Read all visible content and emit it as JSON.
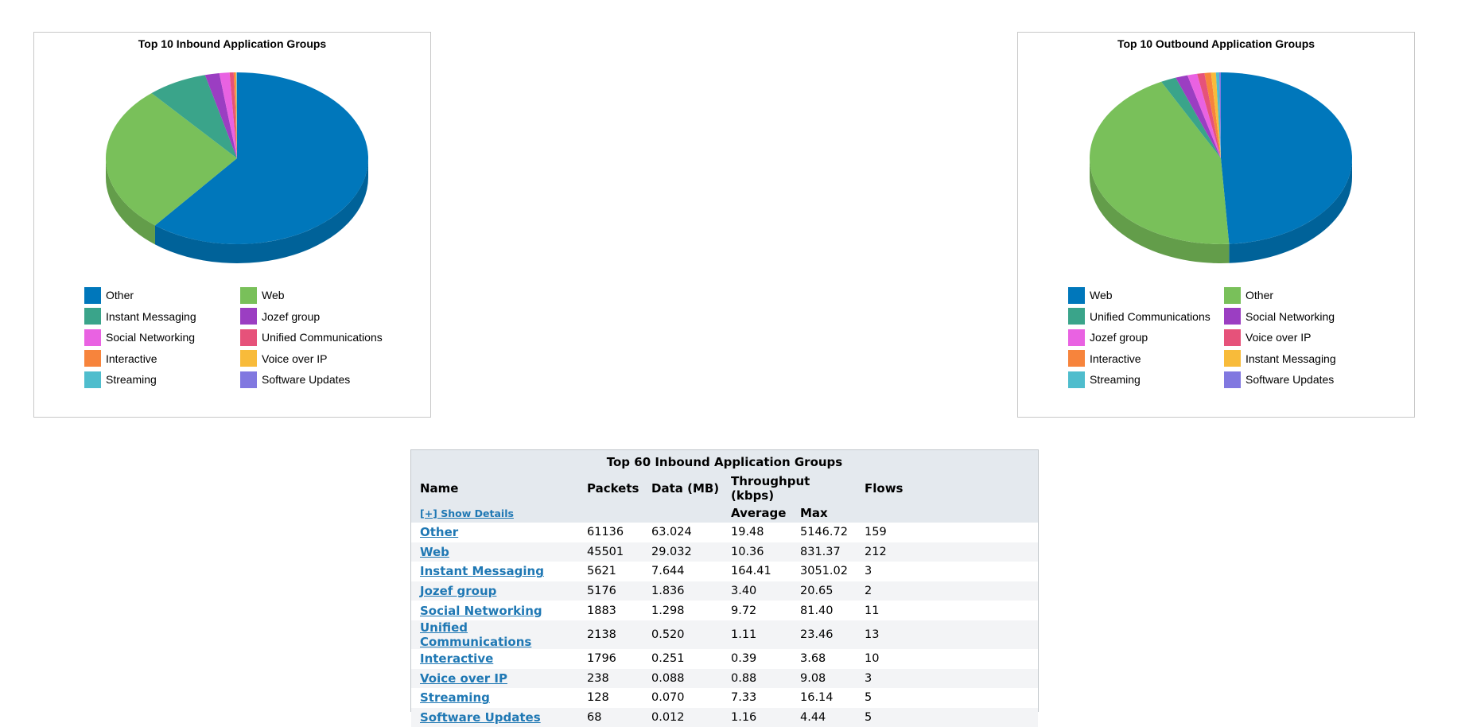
{
  "chart_data": [
    {
      "type": "pie",
      "title": "Top 10 Inbound Application Groups",
      "slices": [
        {
          "label": "Other",
          "value": 63.024,
          "color": "#0077bb"
        },
        {
          "label": "Web",
          "value": 29.032,
          "color": "#79c05a"
        },
        {
          "label": "Instant Messaging",
          "value": 7.644,
          "color": "#3aa48a"
        },
        {
          "label": "Jozef group",
          "value": 1.836,
          "color": "#9b3ec2"
        },
        {
          "label": "Social Networking",
          "value": 1.298,
          "color": "#e962e2"
        },
        {
          "label": "Unified Communications",
          "value": 0.52,
          "color": "#e6527a"
        },
        {
          "label": "Interactive",
          "value": 0.251,
          "color": "#f7843c"
        },
        {
          "label": "Voice over IP",
          "value": 0.088,
          "color": "#f8bb3a"
        },
        {
          "label": "Streaming",
          "value": 0.07,
          "color": "#4fbdcd"
        },
        {
          "label": "Software Updates",
          "value": 0.012,
          "color": "#8178e0"
        }
      ]
    },
    {
      "type": "pie",
      "title": "Top 10 Outbound Application Groups",
      "slices": [
        {
          "label": "Web",
          "value": 49.0,
          "color": "#0077bb"
        },
        {
          "label": "Other",
          "value": 43.5,
          "color": "#79c05a"
        },
        {
          "label": "Unified Communications",
          "value": 1.9,
          "color": "#3aa48a"
        },
        {
          "label": "Social Networking",
          "value": 1.5,
          "color": "#9b3ec2"
        },
        {
          "label": "Jozef group",
          "value": 1.2,
          "color": "#e962e2"
        },
        {
          "label": "Voice over IP",
          "value": 0.9,
          "color": "#e6527a"
        },
        {
          "label": "Interactive",
          "value": 0.8,
          "color": "#f7843c"
        },
        {
          "label": "Instant Messaging",
          "value": 0.6,
          "color": "#f8bb3a"
        },
        {
          "label": "Streaming",
          "value": 0.4,
          "color": "#4fbdcd"
        },
        {
          "label": "Software Updates",
          "value": 0.2,
          "color": "#8178e0"
        }
      ]
    }
  ],
  "table": {
    "caption": "Top 60 Inbound Application Groups",
    "headers": {
      "name": "Name",
      "packets": "Packets",
      "data": "Data (MB)",
      "throughput": "Throughput (kbps)",
      "flows": "Flows"
    },
    "show_details": "[+] Show Details",
    "sub_headers": {
      "average": "Average",
      "max": "Max"
    },
    "rows": [
      {
        "name": "Other",
        "packets": "61136",
        "data": "63.024",
        "average": "19.48",
        "max": "5146.72",
        "flows": "159"
      },
      {
        "name": "Web",
        "packets": "45501",
        "data": "29.032",
        "average": "10.36",
        "max": "831.37",
        "flows": "212"
      },
      {
        "name": "Instant Messaging",
        "packets": "5621",
        "data": "7.644",
        "average": "164.41",
        "max": "3051.02",
        "flows": "3"
      },
      {
        "name": "Jozef group",
        "packets": "5176",
        "data": "1.836",
        "average": "3.40",
        "max": "20.65",
        "flows": "2"
      },
      {
        "name": "Social Networking",
        "packets": "1883",
        "data": "1.298",
        "average": "9.72",
        "max": "81.40",
        "flows": "11"
      },
      {
        "name": "Unified Communications",
        "packets": "2138",
        "data": "0.520",
        "average": "1.11",
        "max": "23.46",
        "flows": "13"
      },
      {
        "name": "Interactive",
        "packets": "1796",
        "data": "0.251",
        "average": "0.39",
        "max": "3.68",
        "flows": "10"
      },
      {
        "name": "Voice over IP",
        "packets": "238",
        "data": "0.088",
        "average": "0.88",
        "max": "9.08",
        "flows": "3"
      },
      {
        "name": "Streaming",
        "packets": "128",
        "data": "0.070",
        "average": "7.33",
        "max": "16.14",
        "flows": "5"
      },
      {
        "name": "Software Updates",
        "packets": "68",
        "data": "0.012",
        "average": "1.16",
        "max": "4.44",
        "flows": "5"
      }
    ]
  }
}
